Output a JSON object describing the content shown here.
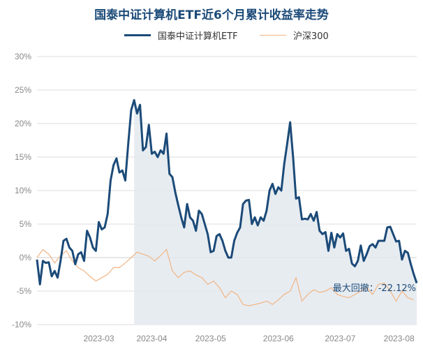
{
  "chart_data": {
    "type": "line",
    "title": "国泰中证计算机ETF近6个月累计收益率走势",
    "xlabel": "",
    "ylabel": "",
    "ylim": [
      -10,
      30
    ],
    "y_ticks": [
      "30%",
      "25%",
      "20%",
      "15%",
      "10%",
      "5%",
      "0%",
      "-5%",
      "-10%"
    ],
    "x_ticks": [
      "2023-03",
      "2023-04",
      "2023-05",
      "2023-06",
      "2023-07",
      "2023-08"
    ],
    "grid": true,
    "legend_position": "top",
    "annotation": "最大回撤：-22.12%",
    "colors": {
      "etf": "#1b4a78",
      "hs300": "#f2b583",
      "area": "#e3e9ef",
      "grid": "#dddddd",
      "text": "#888888"
    },
    "series": [
      {
        "name": "国泰中证计算机ETF",
        "x": [
          0,
          1,
          2,
          3,
          4,
          5,
          6,
          7,
          8,
          9,
          10,
          11,
          12,
          13,
          14,
          15,
          16,
          17,
          18,
          19,
          20,
          21,
          22,
          23,
          24,
          25,
          26,
          27,
          28,
          29,
          30,
          31,
          32,
          33,
          34,
          35,
          36,
          37,
          38,
          39,
          40,
          41,
          42,
          43,
          44,
          45,
          46,
          47,
          48,
          49,
          50,
          51,
          52,
          53,
          54,
          55,
          56,
          57,
          58,
          59,
          60,
          61,
          62,
          63,
          64,
          65,
          66,
          67,
          68,
          69,
          70,
          71,
          72,
          73,
          74,
          75,
          76,
          77,
          78,
          79,
          80,
          81,
          82,
          83,
          84,
          85,
          86,
          87,
          88,
          89,
          90,
          91,
          92,
          93,
          94,
          95,
          96,
          97,
          98,
          99,
          100,
          101,
          102,
          103,
          104,
          105,
          106,
          107,
          108,
          109,
          110,
          111,
          112,
          113,
          114,
          115,
          116,
          117,
          118,
          119,
          120,
          121,
          122,
          123,
          124,
          125,
          126,
          127,
          128,
          129
        ],
        "values": [
          -0.3,
          -4.0,
          -0.5,
          -0.8,
          -0.7,
          -2.8,
          -2.0,
          -3.0,
          -0.5,
          2.5,
          2.8,
          1.5,
          1.0,
          -1.0,
          0.5,
          0.8,
          -0.5,
          4.0,
          3.0,
          1.5,
          1.0,
          5.3,
          4.2,
          4.5,
          6.5,
          11.5,
          13.8,
          14.8,
          12.7,
          13.0,
          11.5,
          17.0,
          22.0,
          23.5,
          21.5,
          22.8,
          16.0,
          16.5,
          19.8,
          15.5,
          15.8,
          15.0,
          16.0,
          15.5,
          18.5,
          12.5,
          12.0,
          9.7,
          7.8,
          6.0,
          4.5,
          8.0,
          6.0,
          5.5,
          4.0,
          7.0,
          6.5,
          5.0,
          3.5,
          0.8,
          1.0,
          3.2,
          3.5,
          2.5,
          1.0,
          0.0,
          0.0,
          2.5,
          3.7,
          4.5,
          8.0,
          8.5,
          8.6,
          5.0,
          6.0,
          4.8,
          6.0,
          5.5,
          7.0,
          10.0,
          11.0,
          9.5,
          10.5,
          10.0,
          14.0,
          17.0,
          20.2,
          15.0,
          8.8,
          9.0,
          5.7,
          5.8,
          5.7,
          6.5,
          5.5,
          6.8,
          4.0,
          3.5,
          3.8,
          1.0,
          3.7,
          1.5,
          3.5,
          3.0,
          3.6,
          1.0,
          1.3,
          -0.9,
          -1.3,
          -0.5,
          1.8,
          -0.5,
          0.5,
          1.7,
          2.0,
          1.5,
          2.5,
          2.5,
          2.5,
          4.5,
          4.6,
          3.5,
          2.4,
          2.5,
          -0.3,
          1.0,
          0.7,
          -1.0,
          -2.5,
          -3.8
        ]
      },
      {
        "name": "沪深300",
        "x": [
          0,
          2,
          4,
          6,
          8,
          10,
          12,
          14,
          16,
          18,
          20,
          22,
          24,
          26,
          28,
          30,
          32,
          34,
          36,
          38,
          40,
          42,
          44,
          46,
          48,
          50,
          52,
          54,
          56,
          58,
          60,
          62,
          64,
          66,
          68,
          70,
          72,
          74,
          76,
          78,
          80,
          82,
          84,
          86,
          88,
          90,
          92,
          94,
          96,
          98,
          100,
          102,
          104,
          106,
          108,
          110,
          112,
          114,
          116,
          118,
          120,
          122,
          124,
          126,
          128
        ],
        "values": [
          0.0,
          1.2,
          0.5,
          -0.8,
          0.3,
          1.0,
          -0.5,
          -1.5,
          -2.0,
          -2.8,
          -3.5,
          -3.0,
          -2.5,
          -1.5,
          -1.5,
          -0.8,
          0.0,
          0.8,
          0.5,
          0.2,
          -0.5,
          0.3,
          1.2,
          -2.0,
          -3.0,
          -2.2,
          -2.0,
          -2.6,
          -3.0,
          -4.0,
          -3.5,
          -4.5,
          -6.0,
          -5.0,
          -5.5,
          -7.0,
          -7.2,
          -7.0,
          -6.8,
          -6.5,
          -7.0,
          -6.3,
          -5.5,
          -5.0,
          -3.0,
          -6.5,
          -5.5,
          -4.8,
          -5.2,
          -5.0,
          -4.5,
          -5.5,
          -5.8,
          -6.0,
          -5.5,
          -5.0,
          -4.5,
          -5.5,
          -4.0,
          -3.8,
          -5.0,
          -6.5,
          -5.0,
          -6.0,
          -6.3
        ]
      }
    ]
  }
}
